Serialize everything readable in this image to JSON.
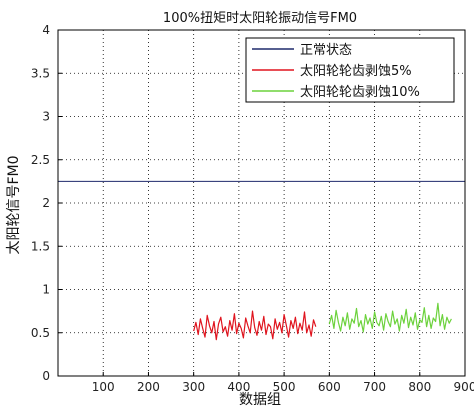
{
  "chart_data": {
    "type": "line",
    "title": "100%扭矩时太阳轮振动信号FM0",
    "xlabel": "数据组",
    "ylabel": "太阳轮信号FM0",
    "xlim": [
      0,
      900
    ],
    "ylim": [
      0,
      4
    ],
    "xticks": [
      "100",
      "200",
      "300",
      "400",
      "500",
      "600",
      "700",
      "800",
      "900"
    ],
    "yticks": [
      "0",
      "0.5",
      "1",
      "1.5",
      "2",
      "2.5",
      "3",
      "3.5",
      "4"
    ],
    "grid": true,
    "legend_position": "top-right",
    "series": [
      {
        "name": "正常状态",
        "color": "#1f2a6b",
        "x": [
          0,
          900
        ],
        "y": [
          2.25,
          2.25
        ]
      },
      {
        "name": "太阳轮轮齿剥蚀5%",
        "color": "#e0141e",
        "x": [
          300,
          305,
          310,
          315,
          320,
          325,
          330,
          335,
          340,
          345,
          350,
          355,
          360,
          365,
          370,
          375,
          380,
          385,
          390,
          395,
          400,
          405,
          410,
          415,
          420,
          425,
          430,
          435,
          440,
          445,
          450,
          455,
          460,
          465,
          470,
          475,
          480,
          485,
          490,
          495,
          500,
          505,
          510,
          515,
          520,
          525,
          530,
          535,
          540,
          545,
          550,
          555,
          560,
          565,
          570
        ],
        "y": [
          0.52,
          0.62,
          0.48,
          0.66,
          0.55,
          0.45,
          0.7,
          0.58,
          0.5,
          0.63,
          0.42,
          0.6,
          0.68,
          0.51,
          0.57,
          0.46,
          0.64,
          0.53,
          0.72,
          0.49,
          0.61,
          0.55,
          0.44,
          0.67,
          0.58,
          0.5,
          0.75,
          0.56,
          0.47,
          0.63,
          0.53,
          0.69,
          0.48,
          0.6,
          0.57,
          0.43,
          0.66,
          0.54,
          0.62,
          0.5,
          0.71,
          0.58,
          0.45,
          0.64,
          0.55,
          0.68,
          0.49,
          0.61,
          0.53,
          0.74,
          0.5,
          0.59,
          0.46,
          0.65,
          0.57
        ]
      },
      {
        "name": "太阳轮轮齿剥蚀10%",
        "color": "#6cd23c",
        "x": [
          600,
          605,
          610,
          615,
          620,
          625,
          630,
          635,
          640,
          645,
          650,
          655,
          660,
          665,
          670,
          675,
          680,
          685,
          690,
          695,
          700,
          705,
          710,
          715,
          720,
          725,
          730,
          735,
          740,
          745,
          750,
          755,
          760,
          765,
          770,
          775,
          780,
          785,
          790,
          795,
          800,
          805,
          810,
          815,
          820,
          825,
          830,
          835,
          840,
          845,
          850,
          855,
          860,
          865,
          870
        ],
        "y": [
          0.6,
          0.7,
          0.55,
          0.76,
          0.62,
          0.52,
          0.68,
          0.58,
          0.73,
          0.54,
          0.66,
          0.61,
          0.78,
          0.57,
          0.64,
          0.51,
          0.71,
          0.6,
          0.67,
          0.55,
          0.74,
          0.62,
          0.58,
          0.69,
          0.53,
          0.72,
          0.63,
          0.57,
          0.75,
          0.6,
          0.66,
          0.52,
          0.7,
          0.61,
          0.77,
          0.56,
          0.68,
          0.59,
          0.73,
          0.54,
          0.65,
          0.62,
          0.79,
          0.57,
          0.7,
          0.55,
          0.67,
          0.63,
          0.84,
          0.58,
          0.71,
          0.54,
          0.68,
          0.61,
          0.66
        ]
      }
    ]
  }
}
